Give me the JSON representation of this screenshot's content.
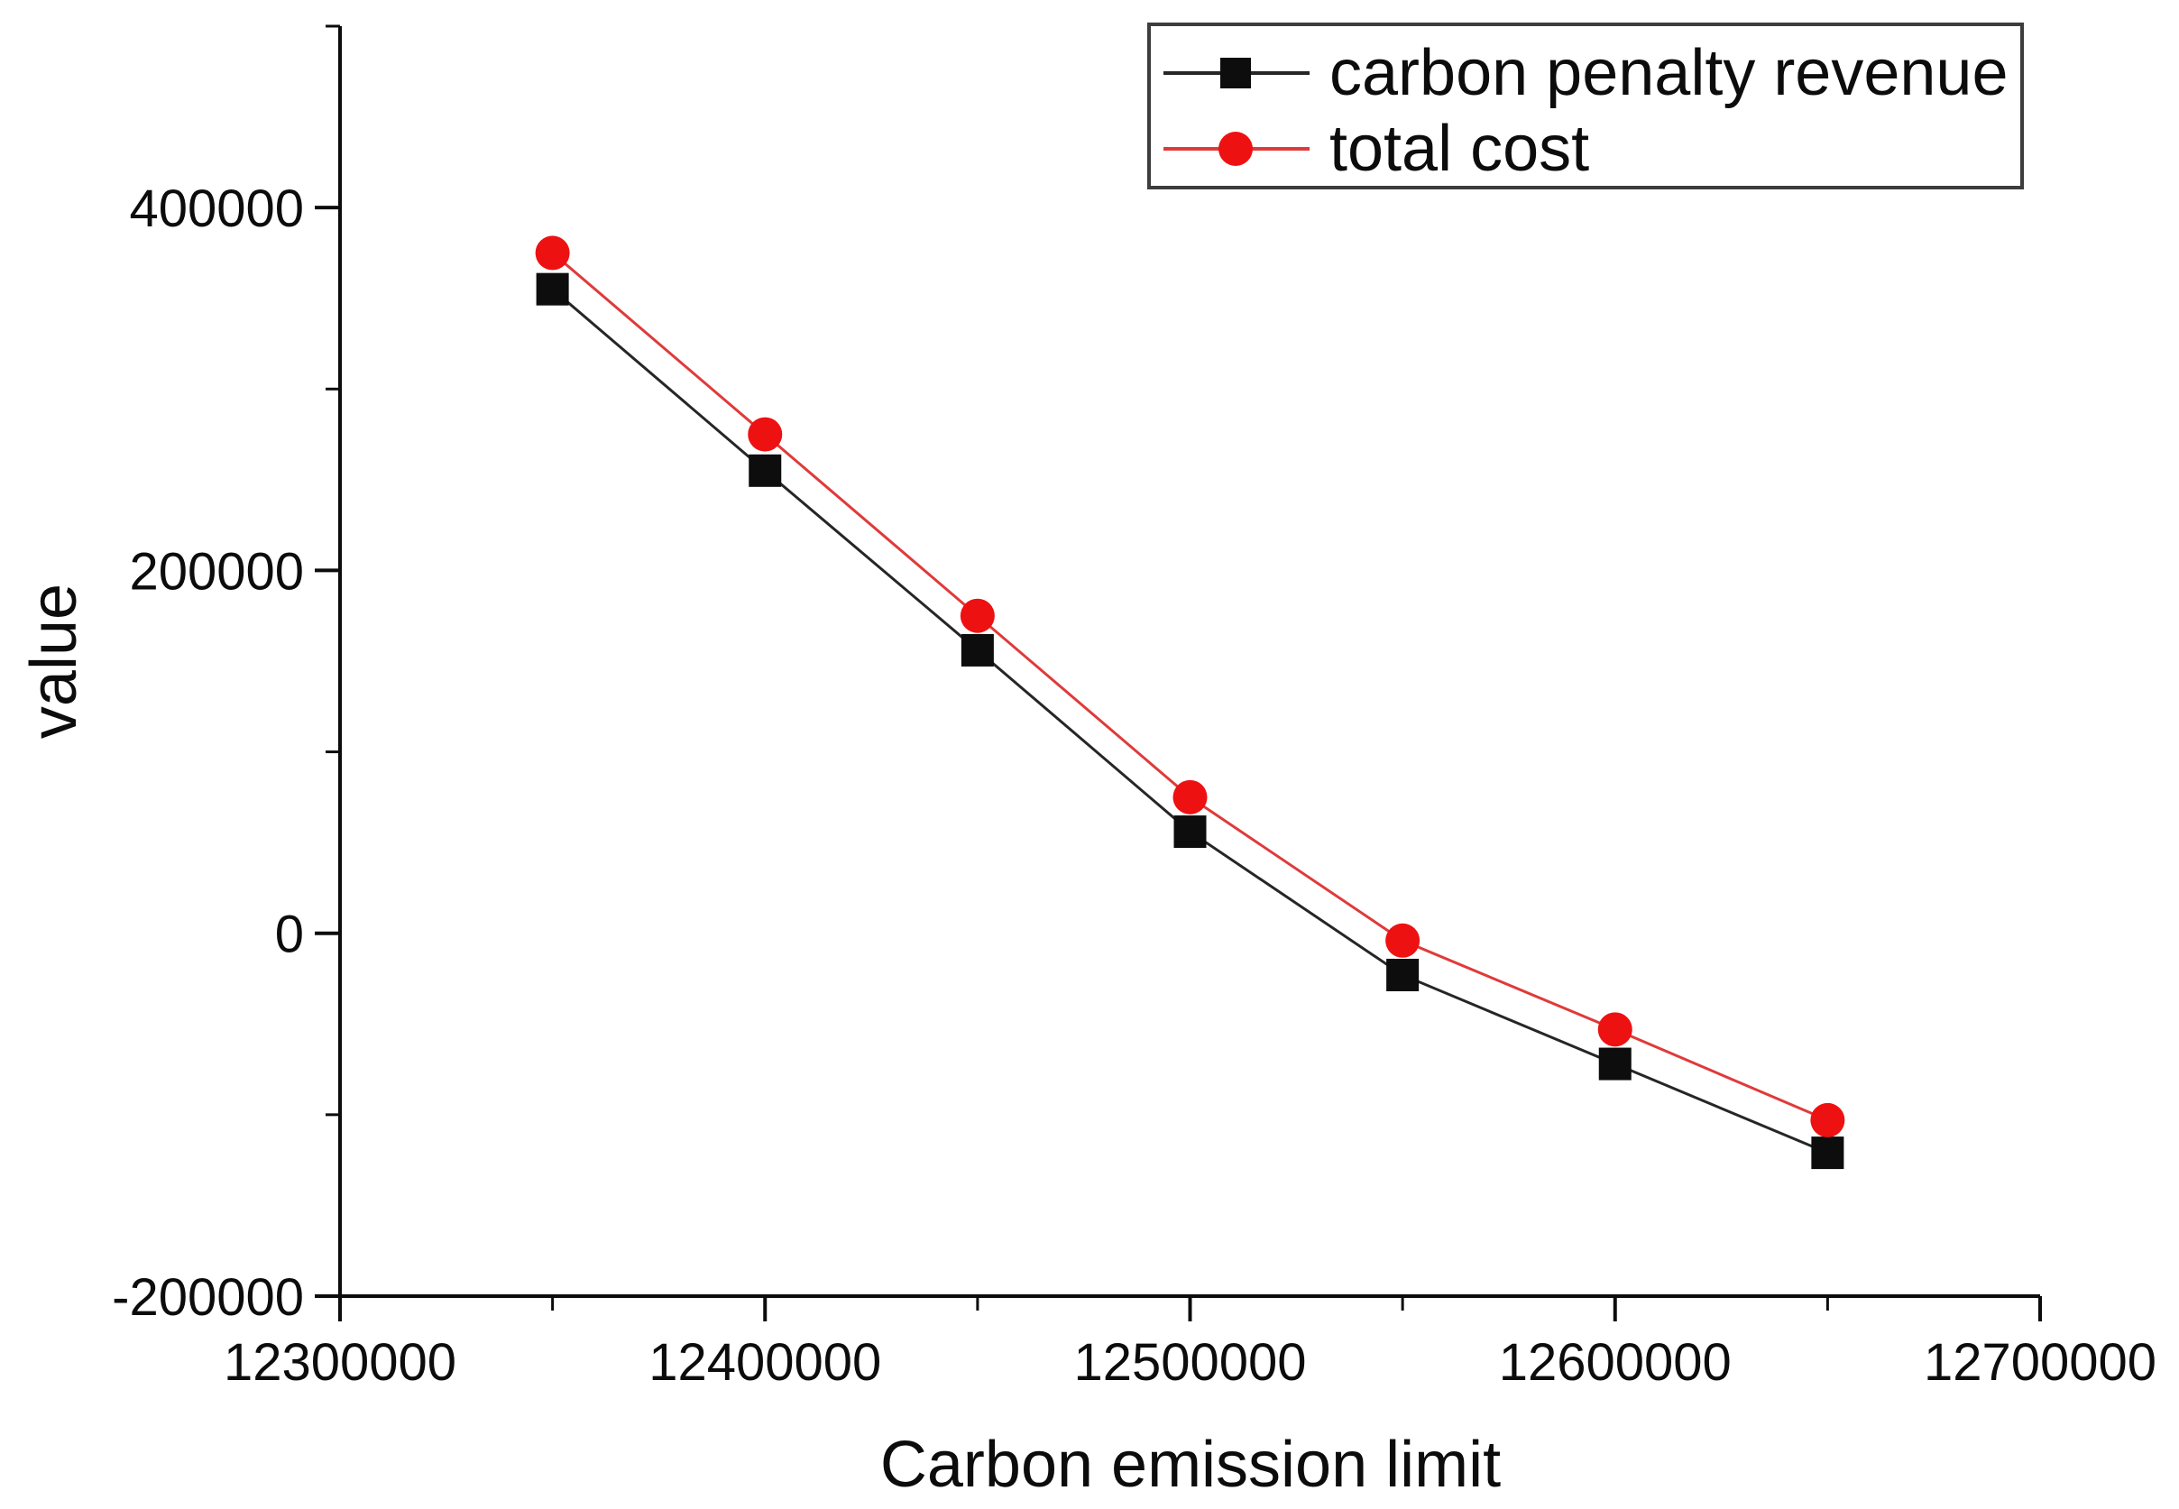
{
  "figure": {
    "background": "#ffffff",
    "axis_color": "#0c0c0c",
    "legend_border_color": "#3d3d3d"
  },
  "chart_data": {
    "type": "line",
    "title": "",
    "xlabel": "Carbon emission limit",
    "ylabel": "value",
    "xlim": [
      12300000,
      12700000
    ],
    "ylim": [
      -200000,
      500000
    ],
    "grid": false,
    "legend_position": "top-right",
    "x": [
      12350000,
      12400000,
      12450000,
      12500000,
      12550000,
      12600000,
      12650000
    ],
    "series": [
      {
        "name": "carbon penalty revenue",
        "values": [
          355000,
          255000,
          156000,
          56000,
          -23000,
          -72000,
          -121000
        ],
        "marker": "square",
        "marker_size": 36,
        "marker_color": "#0d0d0d",
        "line_color": "#262626",
        "line_width": 3
      },
      {
        "name": "total cost",
        "values": [
          375000,
          275000,
          175000,
          75000,
          -4000,
          -53000,
          -103000
        ],
        "marker": "circle",
        "marker_size": 38,
        "marker_color": "#ee1111",
        "line_color": "#e03a3a",
        "line_width": 3
      }
    ],
    "x_ticks": {
      "major": [
        {
          "value": 12300000,
          "label": "12300000"
        },
        {
          "value": 12400000,
          "label": "12400000"
        },
        {
          "value": 12500000,
          "label": "12500000"
        },
        {
          "value": 12600000,
          "label": "12600000"
        },
        {
          "value": 12700000,
          "label": "12700000"
        }
      ],
      "minor": [
        12350000,
        12450000,
        12550000,
        12650000
      ]
    },
    "y_ticks": {
      "major": [
        {
          "value": 400000,
          "label": "400000"
        },
        {
          "value": 200000,
          "label": "200000"
        },
        {
          "value": 0,
          "label": "0"
        },
        {
          "value": -200000,
          "label": "-200000"
        }
      ],
      "minor": [
        500000,
        300000,
        100000,
        -100000
      ]
    }
  }
}
